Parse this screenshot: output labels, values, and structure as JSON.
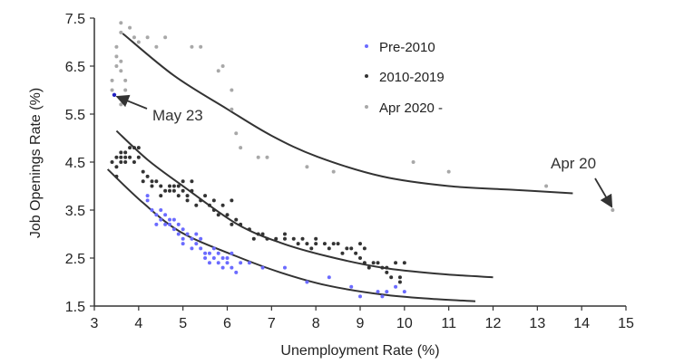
{
  "chart_data": {
    "type": "scatter",
    "title": "",
    "xlabel": "Unemployment Rate (%)",
    "ylabel": "Job Openings Rate (%)",
    "xlim": [
      3,
      15
    ],
    "ylim": [
      1.5,
      7.5
    ],
    "xticks": [
      3,
      4,
      5,
      6,
      7,
      8,
      9,
      10,
      11,
      12,
      13,
      14,
      15
    ],
    "yticks": [
      "1.5",
      "2.5",
      "3.5",
      "4.5",
      "5.5",
      "6.5",
      "7.5"
    ],
    "ytick_values": [
      1.5,
      2.5,
      3.5,
      4.5,
      5.5,
      6.5,
      7.5
    ],
    "legend_position": "top-center",
    "series": [
      {
        "name": "Pre-2010",
        "color": "#6b6bff",
        "points": [
          [
            4.2,
            3.8
          ],
          [
            4.2,
            3.7
          ],
          [
            4.3,
            3.5
          ],
          [
            4.4,
            3.4
          ],
          [
            4.4,
            3.2
          ],
          [
            4.5,
            3.3
          ],
          [
            4.5,
            3.5
          ],
          [
            4.6,
            3.4
          ],
          [
            4.6,
            3.2
          ],
          [
            4.7,
            3.3
          ],
          [
            4.7,
            3.2
          ],
          [
            4.8,
            3.3
          ],
          [
            4.8,
            3.1
          ],
          [
            4.9,
            3.0
          ],
          [
            4.9,
            3.2
          ],
          [
            5.0,
            3.1
          ],
          [
            5.0,
            2.9
          ],
          [
            5.0,
            2.8
          ],
          [
            5.1,
            3.0
          ],
          [
            5.2,
            2.9
          ],
          [
            5.2,
            2.7
          ],
          [
            5.3,
            2.8
          ],
          [
            5.3,
            3.0
          ],
          [
            5.4,
            2.9
          ],
          [
            5.4,
            2.7
          ],
          [
            5.5,
            2.6
          ],
          [
            5.5,
            2.5
          ],
          [
            5.6,
            2.6
          ],
          [
            5.6,
            2.4
          ],
          [
            5.7,
            2.5
          ],
          [
            5.7,
            2.7
          ],
          [
            5.8,
            2.6
          ],
          [
            5.8,
            2.4
          ],
          [
            5.9,
            2.5
          ],
          [
            5.9,
            2.3
          ],
          [
            6.0,
            2.5
          ],
          [
            6.0,
            2.4
          ],
          [
            6.1,
            2.3
          ],
          [
            6.1,
            2.6
          ],
          [
            6.2,
            2.2
          ],
          [
            6.3,
            2.4
          ],
          [
            6.5,
            2.4
          ],
          [
            6.8,
            2.3
          ],
          [
            7.3,
            2.3
          ],
          [
            7.8,
            2.0
          ],
          [
            8.3,
            2.1
          ],
          [
            8.8,
            1.9
          ],
          [
            9.0,
            1.7
          ],
          [
            9.4,
            1.8
          ],
          [
            9.5,
            1.7
          ],
          [
            9.6,
            1.8
          ],
          [
            9.8,
            1.9
          ],
          [
            10.0,
            1.8
          ]
        ]
      },
      {
        "name": "2010-2019",
        "color": "#333333",
        "points": [
          [
            3.4,
            4.5
          ],
          [
            3.5,
            4.6
          ],
          [
            3.5,
            4.4
          ],
          [
            3.6,
            4.5
          ],
          [
            3.6,
            4.6
          ],
          [
            3.6,
            4.7
          ],
          [
            3.7,
            4.5
          ],
          [
            3.7,
            4.6
          ],
          [
            3.7,
            4.7
          ],
          [
            3.8,
            4.8
          ],
          [
            3.8,
            4.6
          ],
          [
            3.9,
            4.8
          ],
          [
            3.9,
            4.5
          ],
          [
            4.0,
            4.8
          ],
          [
            4.0,
            4.6
          ],
          [
            3.5,
            4.2
          ],
          [
            4.1,
            4.3
          ],
          [
            4.1,
            4.1
          ],
          [
            4.2,
            4.2
          ],
          [
            4.3,
            4.1
          ],
          [
            4.3,
            4.0
          ],
          [
            4.4,
            4.1
          ],
          [
            4.5,
            4.0
          ],
          [
            4.5,
            3.8
          ],
          [
            4.6,
            3.9
          ],
          [
            4.7,
            3.9
          ],
          [
            4.7,
            4.0
          ],
          [
            4.8,
            3.9
          ],
          [
            4.8,
            4.0
          ],
          [
            4.9,
            3.8
          ],
          [
            4.9,
            4.0
          ],
          [
            5.0,
            3.9
          ],
          [
            5.0,
            4.1
          ],
          [
            5.1,
            3.8
          ],
          [
            5.1,
            3.7
          ],
          [
            5.2,
            3.9
          ],
          [
            5.2,
            4.1
          ],
          [
            5.3,
            3.6
          ],
          [
            5.4,
            3.7
          ],
          [
            5.5,
            3.8
          ],
          [
            5.6,
            3.6
          ],
          [
            5.7,
            3.7
          ],
          [
            5.7,
            3.5
          ],
          [
            5.8,
            3.4
          ],
          [
            5.9,
            3.6
          ],
          [
            6.0,
            3.4
          ],
          [
            6.1,
            3.7
          ],
          [
            6.1,
            3.2
          ],
          [
            6.2,
            3.3
          ],
          [
            6.3,
            3.2
          ],
          [
            6.5,
            3.1
          ],
          [
            6.6,
            2.9
          ],
          [
            6.7,
            3.0
          ],
          [
            6.8,
            3.0
          ],
          [
            6.9,
            2.9
          ],
          [
            7.1,
            2.9
          ],
          [
            7.3,
            2.9
          ],
          [
            7.3,
            3.0
          ],
          [
            7.5,
            2.9
          ],
          [
            7.6,
            2.8
          ],
          [
            7.7,
            2.9
          ],
          [
            7.8,
            2.8
          ],
          [
            7.9,
            2.7
          ],
          [
            8.0,
            2.8
          ],
          [
            8.0,
            2.9
          ],
          [
            8.2,
            2.8
          ],
          [
            8.3,
            2.7
          ],
          [
            8.4,
            2.8
          ],
          [
            8.5,
            2.8
          ],
          [
            8.6,
            2.6
          ],
          [
            8.7,
            2.7
          ],
          [
            8.8,
            2.7
          ],
          [
            8.9,
            2.6
          ],
          [
            9.0,
            2.8
          ],
          [
            9.0,
            2.5
          ],
          [
            9.1,
            2.4
          ],
          [
            9.1,
            2.7
          ],
          [
            9.2,
            2.3
          ],
          [
            9.3,
            2.4
          ],
          [
            9.4,
            2.4
          ],
          [
            9.5,
            2.3
          ],
          [
            9.6,
            2.3
          ],
          [
            9.6,
            2.2
          ],
          [
            9.7,
            2.1
          ],
          [
            9.8,
            2.4
          ],
          [
            9.9,
            2.1
          ],
          [
            9.9,
            2.0
          ],
          [
            10.0,
            2.4
          ]
        ]
      },
      {
        "name": "Apr 2020 -",
        "color": "#a8a8a8",
        "points": [
          [
            3.6,
            7.4
          ],
          [
            3.8,
            7.3
          ],
          [
            3.6,
            7.2
          ],
          [
            3.9,
            7.1
          ],
          [
            4.2,
            7.1
          ],
          [
            4.6,
            7.1
          ],
          [
            4.0,
            7.0
          ],
          [
            4.4,
            6.9
          ],
          [
            5.2,
            6.9
          ],
          [
            5.4,
            6.9
          ],
          [
            3.5,
            6.9
          ],
          [
            3.5,
            6.7
          ],
          [
            3.6,
            6.6
          ],
          [
            3.5,
            6.5
          ],
          [
            3.6,
            6.4
          ],
          [
            3.4,
            6.2
          ],
          [
            3.7,
            6.2
          ],
          [
            3.4,
            6.0
          ],
          [
            3.7,
            6.0
          ],
          [
            3.6,
            5.7
          ],
          [
            5.9,
            6.5
          ],
          [
            5.8,
            6.4
          ],
          [
            6.1,
            6.0
          ],
          [
            6.1,
            5.6
          ],
          [
            6.2,
            5.1
          ],
          [
            6.3,
            4.8
          ],
          [
            6.7,
            4.6
          ],
          [
            6.9,
            4.6
          ],
          [
            7.8,
            4.4
          ],
          [
            8.4,
            4.3
          ],
          [
            10.2,
            4.5
          ],
          [
            11.0,
            4.3
          ],
          [
            13.2,
            4.0
          ],
          [
            14.7,
            3.5
          ]
        ]
      }
    ],
    "highlight_point": {
      "label": "May 23",
      "point": [
        3.45,
        5.9
      ],
      "color": "#2020c0"
    },
    "fit_curves": [
      {
        "series": "Apr 2020 -",
        "points": [
          [
            3.64,
            7.18
          ],
          [
            4.8,
            6.3
          ],
          [
            5.99,
            5.61
          ],
          [
            7.0,
            5.05
          ],
          [
            8.04,
            4.61
          ],
          [
            9.5,
            4.2
          ],
          [
            11.0,
            4.0
          ],
          [
            12.5,
            3.92
          ],
          [
            13.8,
            3.85
          ]
        ]
      },
      {
        "series": "2010-2019",
        "points": [
          [
            3.5,
            5.15
          ],
          [
            4.2,
            4.55
          ],
          [
            4.97,
            4.02
          ],
          [
            6.2,
            3.22
          ],
          [
            7.2,
            2.82
          ],
          [
            8.25,
            2.54
          ],
          [
            9.5,
            2.3
          ],
          [
            10.8,
            2.17
          ],
          [
            12.0,
            2.1
          ]
        ]
      },
      {
        "series": "Pre-2010",
        "points": [
          [
            3.3,
            4.35
          ],
          [
            4.1,
            3.65
          ],
          [
            4.97,
            3.03
          ],
          [
            6.2,
            2.54
          ],
          [
            7.2,
            2.2
          ],
          [
            8.25,
            1.93
          ],
          [
            9.5,
            1.74
          ],
          [
            10.6,
            1.65
          ],
          [
            11.6,
            1.6
          ]
        ]
      }
    ],
    "annotations": [
      {
        "text": "May 23",
        "target": [
          3.5,
          5.88
        ],
        "text_at": [
          4.3,
          5.45
        ]
      },
      {
        "text": "Apr 20",
        "target": [
          14.7,
          3.55
        ],
        "text_at": [
          14.0,
          4.6
        ]
      }
    ]
  }
}
